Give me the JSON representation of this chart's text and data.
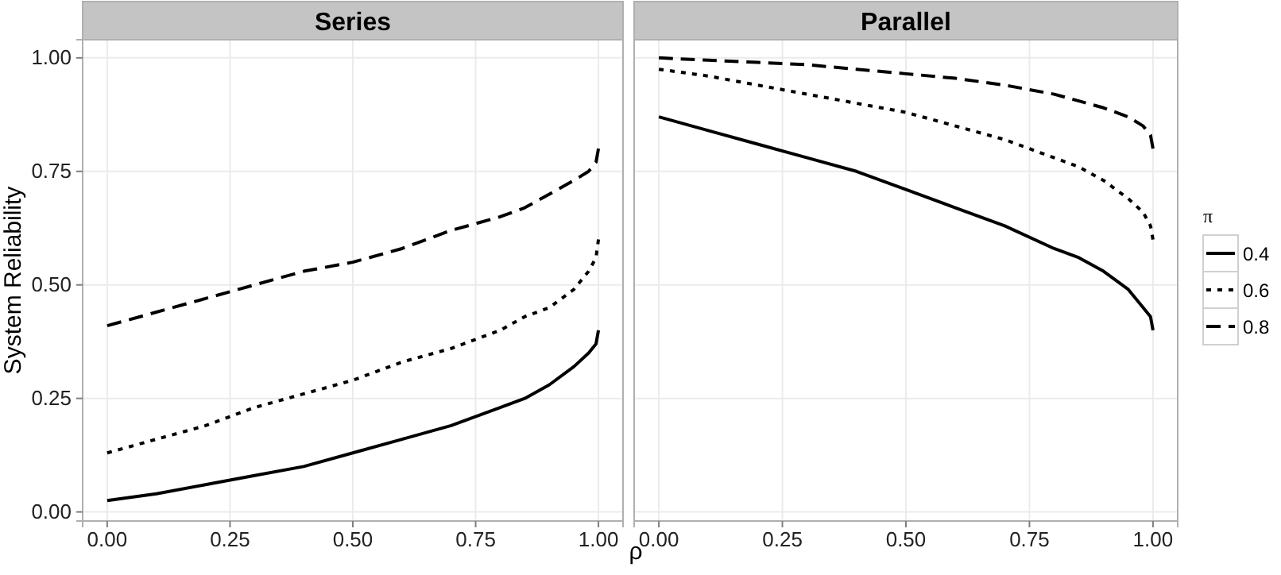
{
  "chart_data": [
    {
      "type": "line",
      "title": "Series",
      "xlabel": "ρ",
      "ylabel": "System Reliability",
      "xlim": [
        -0.05,
        1.05
      ],
      "ylim": [
        -0.02,
        1.04
      ],
      "xticks": [
        {
          "value": 0,
          "label": "0.00"
        },
        {
          "value": 0.25,
          "label": "0.25"
        },
        {
          "value": 0.5,
          "label": "0.50"
        },
        {
          "value": 0.75,
          "label": "0.75"
        },
        {
          "value": 1,
          "label": "1.00"
        }
      ],
      "yticks": [
        {
          "value": 0,
          "label": "0.00"
        },
        {
          "value": 0.25,
          "label": "0.25"
        },
        {
          "value": 0.5,
          "label": "0.50"
        },
        {
          "value": 0.75,
          "label": "0.75"
        },
        {
          "value": 1,
          "label": "1.00"
        }
      ],
      "grid": true,
      "legend": false,
      "x": [
        0,
        0.1,
        0.2,
        0.3,
        0.4,
        0.5,
        0.6,
        0.7,
        0.8,
        0.85,
        0.9,
        0.95,
        0.98,
        0.995,
        1
      ],
      "series": [
        {
          "color": "#000000",
          "line_style": "solid",
          "values": [
            0.025,
            0.04,
            0.06,
            0.08,
            0.1,
            0.13,
            0.16,
            0.19,
            0.23,
            0.25,
            0.28,
            0.32,
            0.35,
            0.37,
            0.4
          ]
        },
        {
          "color": "#000000",
          "line_style": "dotted",
          "values": [
            0.13,
            0.16,
            0.19,
            0.23,
            0.26,
            0.29,
            0.33,
            0.36,
            0.4,
            0.43,
            0.45,
            0.49,
            0.53,
            0.56,
            0.6
          ]
        },
        {
          "color": "#000000",
          "line_style": "dashed",
          "values": [
            0.41,
            0.44,
            0.47,
            0.5,
            0.53,
            0.55,
            0.58,
            0.62,
            0.65,
            0.67,
            0.7,
            0.73,
            0.75,
            0.77,
            0.8
          ]
        }
      ]
    },
    {
      "type": "line",
      "title": "Parallel",
      "legend_title": "π",
      "xlim": [
        -0.05,
        1.05
      ],
      "ylim": [
        -0.02,
        1.04
      ],
      "xticks": [
        {
          "value": 0,
          "label": "0.00"
        },
        {
          "value": 0.25,
          "label": "0.25"
        },
        {
          "value": 0.5,
          "label": "0.50"
        },
        {
          "value": 0.75,
          "label": "0.75"
        },
        {
          "value": 1,
          "label": "1.00"
        }
      ],
      "yticks": [
        0,
        0.25,
        0.5,
        0.75,
        1
      ],
      "tick_labels": "x",
      "grid": true,
      "legend": "right",
      "x": [
        0,
        0.1,
        0.2,
        0.3,
        0.4,
        0.5,
        0.6,
        0.7,
        0.8,
        0.85,
        0.9,
        0.95,
        0.98,
        0.995,
        1
      ],
      "series": [
        {
          "name": "0.4",
          "color": "#000000",
          "line_style": "solid",
          "values": [
            0.87,
            0.84,
            0.81,
            0.78,
            0.75,
            0.71,
            0.67,
            0.63,
            0.58,
            0.56,
            0.53,
            0.49,
            0.45,
            0.43,
            0.4
          ]
        },
        {
          "name": "0.6",
          "color": "#000000",
          "line_style": "dotted",
          "values": [
            0.975,
            0.96,
            0.94,
            0.92,
            0.9,
            0.88,
            0.85,
            0.82,
            0.78,
            0.76,
            0.73,
            0.69,
            0.66,
            0.63,
            0.6
          ]
        },
        {
          "name": "0.8",
          "color": "#000000",
          "line_style": "dashed",
          "values": [
            1.0,
            0.995,
            0.99,
            0.985,
            0.975,
            0.965,
            0.955,
            0.94,
            0.92,
            0.905,
            0.89,
            0.87,
            0.85,
            0.83,
            0.8
          ]
        }
      ]
    }
  ]
}
